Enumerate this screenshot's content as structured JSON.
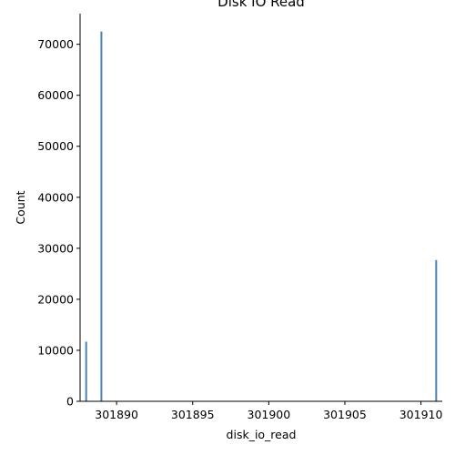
{
  "chart_data": {
    "type": "bar",
    "title": "Disk IO Read",
    "xlabel": "disk_io_read",
    "ylabel": "Count",
    "xlim": [
      301887.6,
      301911.4
    ],
    "ylim": [
      0,
      76000
    ],
    "xticks": [
      301890,
      301895,
      301900,
      301905,
      301910
    ],
    "yticks": [
      0,
      10000,
      20000,
      30000,
      40000,
      50000,
      60000,
      70000
    ],
    "bar_color": "#4c82b0",
    "grid": false,
    "bars": [
      {
        "x": 301888,
        "count": 11700
      },
      {
        "x": 301889,
        "count": 72500
      },
      {
        "x": 301911,
        "count": 27700
      }
    ]
  }
}
